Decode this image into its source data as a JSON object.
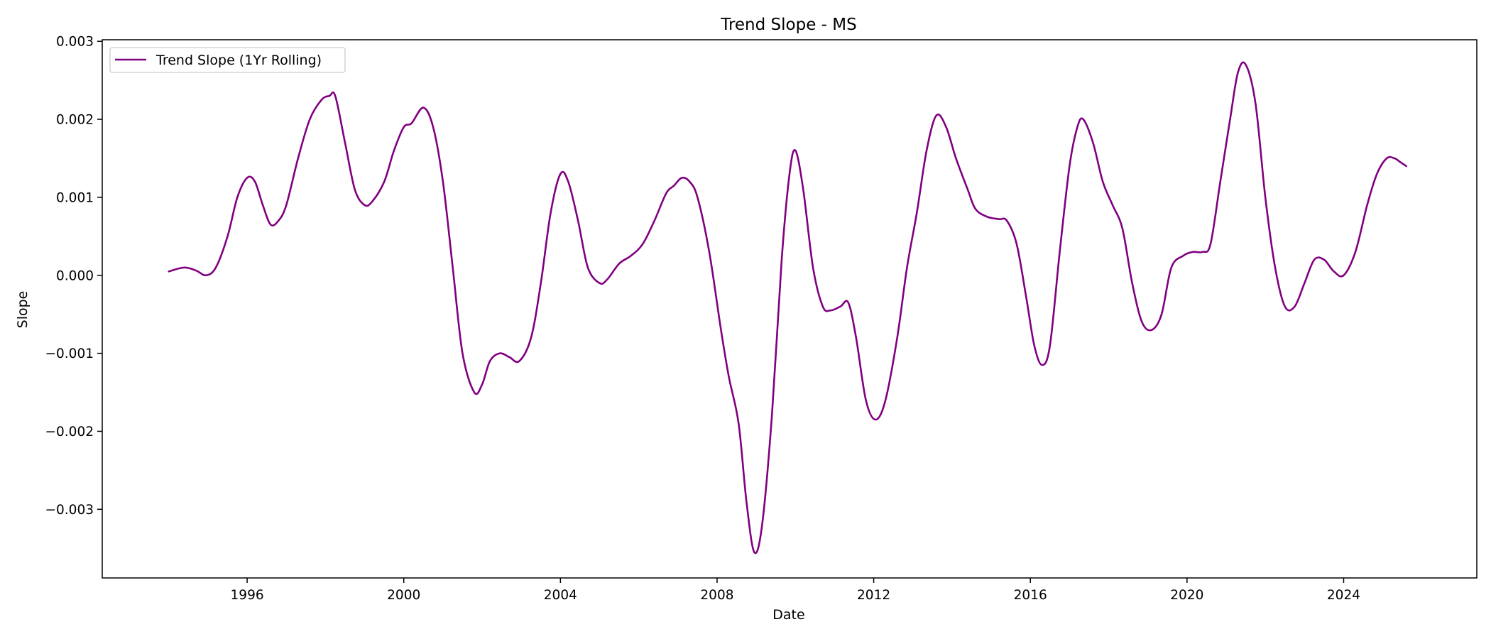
{
  "chart_data": {
    "type": "line",
    "title": "Trend Slope - MS",
    "xlabel": "Date",
    "ylabel": "Slope",
    "xlim": [
      1992.3,
      2027.4
    ],
    "ylim": [
      -0.00388,
      0.00302
    ],
    "grid": false,
    "legend_position": "top-left",
    "x_ticks": [
      1996,
      2000,
      2004,
      2008,
      2012,
      2016,
      2020,
      2024
    ],
    "x_tick_labels": [
      "1996",
      "2000",
      "2004",
      "2008",
      "2012",
      "2016",
      "2020",
      "2024"
    ],
    "y_ticks": [
      -0.003,
      -0.002,
      -0.001,
      0.0,
      0.001,
      0.002,
      0.003
    ],
    "y_tick_labels": [
      "−0.003",
      "−0.002",
      "−0.001",
      "0.000",
      "0.001",
      "0.002",
      "0.003"
    ],
    "series": [
      {
        "name": "Trend Slope (1Yr Rolling)",
        "color": "#800080",
        "points": [
          [
            1994.0,
            5e-05
          ],
          [
            1994.4,
            0.0001
          ],
          [
            1994.7,
            6e-05
          ],
          [
            1994.95,
            0.0
          ],
          [
            1995.2,
            0.0001
          ],
          [
            1995.5,
            0.0005
          ],
          [
            1995.75,
            0.001
          ],
          [
            1996.0,
            0.00125
          ],
          [
            1996.2,
            0.0012
          ],
          [
            1996.4,
            0.0009
          ],
          [
            1996.6,
            0.00065
          ],
          [
            1996.8,
            0.0007
          ],
          [
            1997.0,
            0.0009
          ],
          [
            1997.3,
            0.0015
          ],
          [
            1997.6,
            0.002
          ],
          [
            1997.9,
            0.00225
          ],
          [
            1998.1,
            0.0023
          ],
          [
            1998.25,
            0.0023
          ],
          [
            1998.5,
            0.0017
          ],
          [
            1998.75,
            0.0011
          ],
          [
            1999.0,
            0.0009
          ],
          [
            1999.2,
            0.00095
          ],
          [
            1999.5,
            0.0012
          ],
          [
            1999.75,
            0.0016
          ],
          [
            2000.0,
            0.0019
          ],
          [
            2000.2,
            0.00195
          ],
          [
            2000.5,
            0.00215
          ],
          [
            2000.75,
            0.0019
          ],
          [
            2001.0,
            0.0012
          ],
          [
            2001.25,
            0.0001
          ],
          [
            2001.5,
            -0.001
          ],
          [
            2001.8,
            -0.0015
          ],
          [
            2002.0,
            -0.0014
          ],
          [
            2002.2,
            -0.0011
          ],
          [
            2002.45,
            -0.001
          ],
          [
            2002.7,
            -0.00105
          ],
          [
            2002.95,
            -0.0011
          ],
          [
            2003.25,
            -0.0008
          ],
          [
            2003.5,
            -0.0001
          ],
          [
            2003.75,
            0.0008
          ],
          [
            2004.0,
            0.0013
          ],
          [
            2004.2,
            0.0012
          ],
          [
            2004.45,
            0.0007
          ],
          [
            2004.7,
            0.0001
          ],
          [
            2005.0,
            -0.0001
          ],
          [
            2005.2,
            -5e-05
          ],
          [
            2005.5,
            0.00015
          ],
          [
            2005.8,
            0.00025
          ],
          [
            2006.1,
            0.0004
          ],
          [
            2006.4,
            0.0007
          ],
          [
            2006.7,
            0.00105
          ],
          [
            2006.9,
            0.00115
          ],
          [
            2007.1,
            0.00125
          ],
          [
            2007.3,
            0.0012
          ],
          [
            2007.5,
            0.001
          ],
          [
            2007.8,
            0.0003
          ],
          [
            2008.1,
            -0.0007
          ],
          [
            2008.3,
            -0.0013
          ],
          [
            2008.55,
            -0.0019
          ],
          [
            2008.75,
            -0.0029
          ],
          [
            2008.95,
            -0.00355
          ],
          [
            2009.15,
            -0.0032
          ],
          [
            2009.4,
            -0.0018
          ],
          [
            2009.65,
            0.0002
          ],
          [
            2009.85,
            0.0013
          ],
          [
            2010.0,
            0.0016
          ],
          [
            2010.2,
            0.0011
          ],
          [
            2010.45,
            0.0001
          ],
          [
            2010.7,
            -0.0004
          ],
          [
            2010.9,
            -0.00045
          ],
          [
            2011.15,
            -0.0004
          ],
          [
            2011.35,
            -0.00035
          ],
          [
            2011.55,
            -0.0008
          ],
          [
            2011.8,
            -0.0016
          ],
          [
            2012.05,
            -0.00185
          ],
          [
            2012.3,
            -0.0016
          ],
          [
            2012.6,
            -0.0008
          ],
          [
            2012.85,
            0.0001
          ],
          [
            2013.1,
            0.0008
          ],
          [
            2013.35,
            0.0016
          ],
          [
            2013.6,
            0.00205
          ],
          [
            2013.85,
            0.0019
          ],
          [
            2014.1,
            0.0015
          ],
          [
            2014.4,
            0.0011
          ],
          [
            2014.6,
            0.00085
          ],
          [
            2014.9,
            0.00075
          ],
          [
            2015.2,
            0.00072
          ],
          [
            2015.4,
            0.0007
          ],
          [
            2015.65,
            0.0004
          ],
          [
            2015.9,
            -0.0003
          ],
          [
            2016.1,
            -0.0009
          ],
          [
            2016.3,
            -0.00115
          ],
          [
            2016.5,
            -0.0009
          ],
          [
            2016.75,
            0.0003
          ],
          [
            2017.0,
            0.0014
          ],
          [
            2017.2,
            0.0019
          ],
          [
            2017.35,
            0.002
          ],
          [
            2017.6,
            0.0017
          ],
          [
            2017.85,
            0.0012
          ],
          [
            2018.1,
            0.0009
          ],
          [
            2018.35,
            0.0006
          ],
          [
            2018.6,
            -0.0001
          ],
          [
            2018.85,
            -0.0006
          ],
          [
            2019.1,
            -0.0007
          ],
          [
            2019.35,
            -0.0005
          ],
          [
            2019.6,
            0.0001
          ],
          [
            2019.9,
            0.00025
          ],
          [
            2020.15,
            0.0003
          ],
          [
            2020.4,
            0.0003
          ],
          [
            2020.6,
            0.0004
          ],
          [
            2020.85,
            0.0012
          ],
          [
            2021.1,
            0.002
          ],
          [
            2021.3,
            0.0026
          ],
          [
            2021.5,
            0.0027
          ],
          [
            2021.75,
            0.0022
          ],
          [
            2022.0,
            0.001
          ],
          [
            2022.25,
            0.0001
          ],
          [
            2022.5,
            -0.0004
          ],
          [
            2022.75,
            -0.0004
          ],
          [
            2023.0,
            -0.0001
          ],
          [
            2023.25,
            0.0002
          ],
          [
            2023.5,
            0.0002
          ],
          [
            2023.75,
            5e-05
          ],
          [
            2024.0,
            0.0
          ],
          [
            2024.3,
            0.0003
          ],
          [
            2024.6,
            0.0009
          ],
          [
            2024.85,
            0.0013
          ],
          [
            2025.1,
            0.0015
          ],
          [
            2025.3,
            0.0015
          ],
          [
            2025.45,
            0.00145
          ],
          [
            2025.6,
            0.0014
          ]
        ]
      }
    ]
  }
}
